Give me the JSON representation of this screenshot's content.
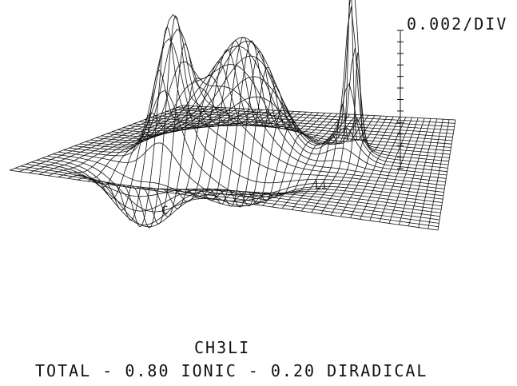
{
  "figure": {
    "scale_label": "0.002/DIV",
    "scale_tick_count": 12,
    "surface_marks": [
      "C",
      "Li"
    ],
    "caption_title": "CH3LI",
    "caption_subtitle": "TOTAL - 0.80 IONIC - 0.20 DIRADICAL",
    "colors": {
      "line": "#111111",
      "background": "#ffffff"
    }
  }
}
